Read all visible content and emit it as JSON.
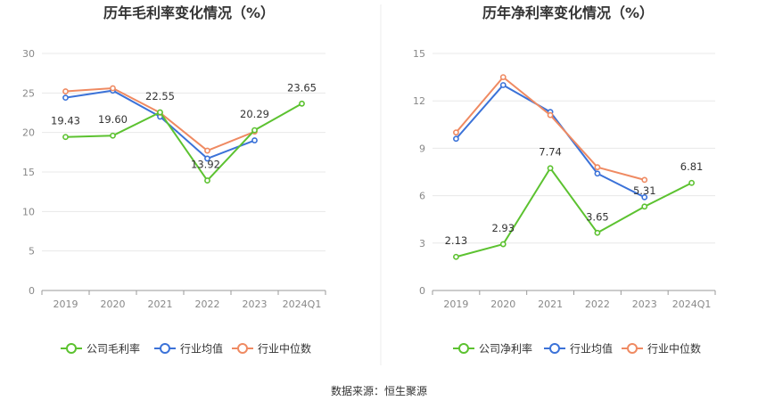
{
  "source_text": "数据来源：恒生聚源",
  "colors": {
    "company": "#5cc230",
    "industry_avg": "#3b72d8",
    "industry_median": "#ef8a62",
    "grid": "#e8e8e8",
    "axis": "#999999"
  },
  "chart_data": [
    {
      "type": "line",
      "title": "历年毛利率变化情况（%）",
      "categories": [
        "2019",
        "2020",
        "2021",
        "2022",
        "2023",
        "2024Q1"
      ],
      "ylim": [
        0,
        30
      ],
      "yticks": [
        0,
        5,
        10,
        15,
        20,
        25,
        30
      ],
      "grid": true,
      "legend_position": "bottom",
      "series": [
        {
          "name": "公司毛利率",
          "color_key": "company",
          "values": [
            19.43,
            19.6,
            22.55,
            13.92,
            20.29,
            23.65
          ],
          "labels": [
            "19.43",
            "19.60",
            "22.55",
            "13.92",
            "20.29",
            "23.65"
          ]
        },
        {
          "name": "行业均值",
          "color_key": "industry_avg",
          "values": [
            24.4,
            25.3,
            22.0,
            16.7,
            19.0,
            null
          ]
        },
        {
          "name": "行业中位数",
          "color_key": "industry_median",
          "values": [
            25.2,
            25.6,
            22.5,
            17.7,
            20.1,
            null
          ]
        }
      ]
    },
    {
      "type": "line",
      "title": "历年净利率变化情况（%）",
      "categories": [
        "2019",
        "2020",
        "2021",
        "2022",
        "2023",
        "2024Q1"
      ],
      "ylim": [
        0,
        15
      ],
      "yticks": [
        0,
        3,
        6,
        9,
        12,
        15
      ],
      "grid": true,
      "legend_position": "bottom",
      "series": [
        {
          "name": "公司净利率",
          "color_key": "company",
          "values": [
            2.13,
            2.93,
            7.74,
            3.65,
            5.31,
            6.81
          ],
          "labels": [
            "2.13",
            "2.93",
            "7.74",
            "3.65",
            "5.31",
            "6.81"
          ]
        },
        {
          "name": "行业均值",
          "color_key": "industry_avg",
          "values": [
            9.6,
            13.0,
            11.3,
            7.4,
            5.9,
            null
          ]
        },
        {
          "name": "行业中位数",
          "color_key": "industry_median",
          "values": [
            10.0,
            13.5,
            11.1,
            7.8,
            7.0,
            null
          ]
        }
      ]
    }
  ]
}
